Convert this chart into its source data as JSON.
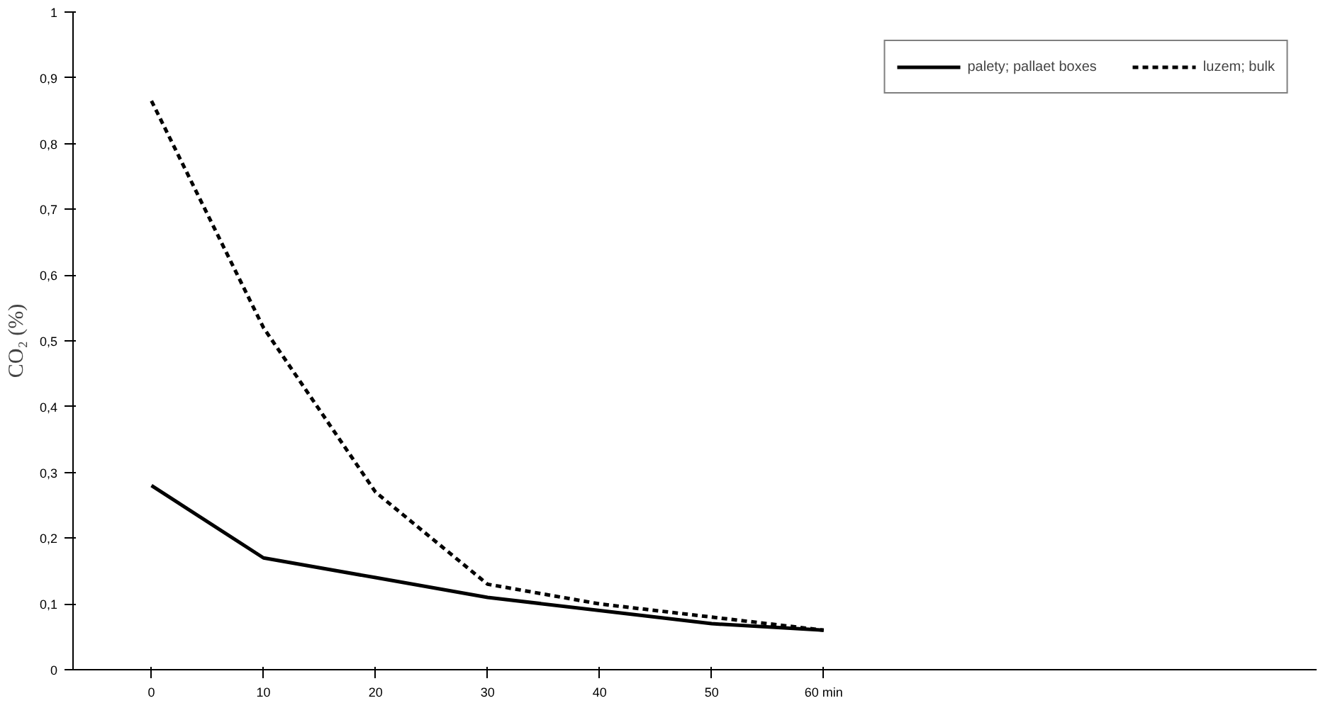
{
  "chart_data": {
    "type": "line",
    "ylabel": "CO₂ (%)",
    "x": [
      0,
      10,
      20,
      30,
      40,
      50,
      60
    ],
    "series": [
      {
        "name": "palety; pallaet boxes",
        "color": "#000000",
        "line_style": "solid",
        "values": [
          0.28,
          0.17,
          0.14,
          0.11,
          0.09,
          0.07,
          0.06
        ]
      },
      {
        "name": "luzem; bulk",
        "color": "#000000",
        "line_style": "dashed",
        "values": [
          0.865,
          0.52,
          0.27,
          0.13,
          0.1,
          0.08,
          0.06
        ]
      }
    ],
    "xlim": [
      -7,
      104
    ],
    "xticks": [
      0,
      10,
      20,
      30,
      40,
      50,
      {
        "value": 60,
        "label": "60 min"
      }
    ],
    "ylim": [
      0,
      1
    ],
    "yticks": [
      0,
      {
        "value": 0.1,
        "label": "0,1"
      },
      {
        "value": 0.2,
        "label": "0,2"
      },
      {
        "value": 0.3,
        "label": "0,3"
      },
      {
        "value": 0.4,
        "label": "0,4"
      },
      {
        "value": 0.5,
        "label": "0,5"
      },
      {
        "value": 0.6,
        "label": "0,6"
      },
      {
        "value": 0.7,
        "label": "0,7"
      },
      {
        "value": 0.8,
        "label": "0,8"
      },
      {
        "value": 0.9,
        "label": "0,9"
      },
      1
    ],
    "grid": false,
    "legend": "top right",
    "marker": "none"
  }
}
